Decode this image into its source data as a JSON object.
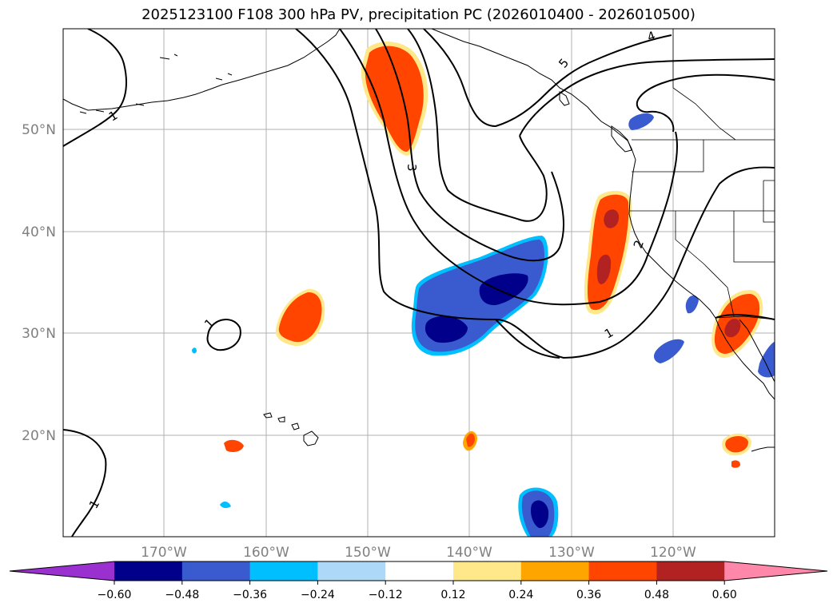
{
  "title": "2025123100 F108 300 hPa PV, precipitation PC (2026010400 - 2026010500)",
  "map": {
    "lat_labels": [
      "50°N",
      "40°N",
      "30°N",
      "20°N"
    ],
    "lon_labels": [
      "170°W",
      "160°W",
      "150°W",
      "140°W",
      "130°W",
      "120°W"
    ],
    "contour_labels": [
      "1",
      "1",
      "1",
      "1",
      "2",
      "3",
      "4",
      "5"
    ]
  },
  "colorbar": {
    "colors": [
      "#9b30d0",
      "#00008b",
      "#3a5bd0",
      "#00bfff",
      "#add8f7",
      "#ffffff",
      "#ffe88a",
      "#ffa500",
      "#ff4500",
      "#b22222",
      "#ff88aa"
    ],
    "tick_labels": [
      "−0.60",
      "−0.48",
      "−0.36",
      "−0.24",
      "−0.12",
      "0.12",
      "0.24",
      "0.36",
      "0.48",
      "0.60"
    ]
  }
}
